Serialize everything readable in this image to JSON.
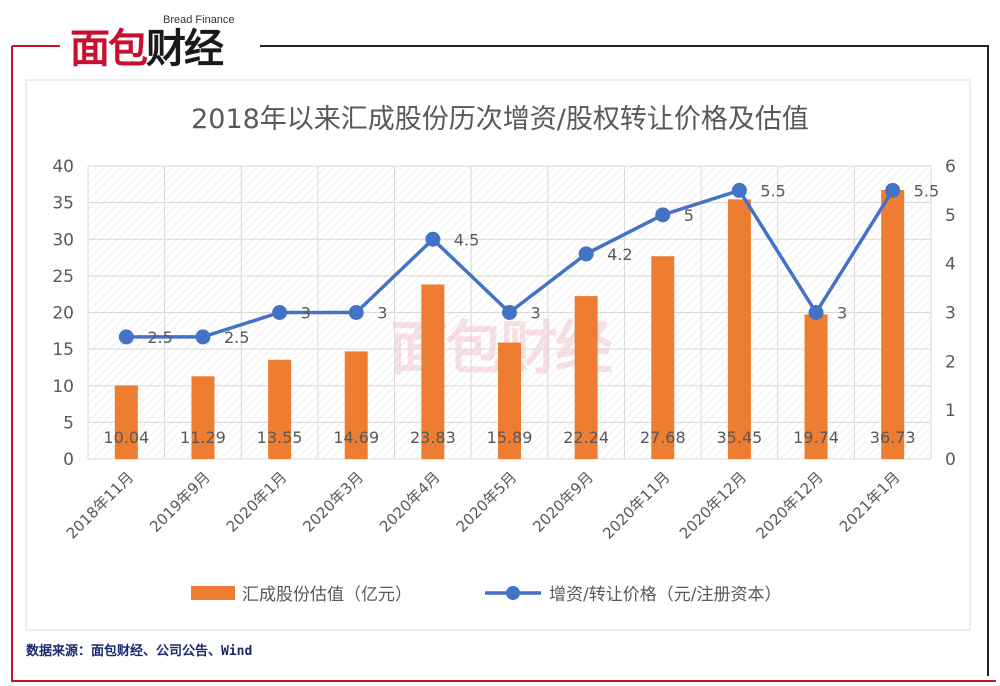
{
  "brand": {
    "logo_part1": "面包",
    "logo_part2": "财经",
    "logo_en": "Bread Finance"
  },
  "source_note": "数据来源：面包财经、公司公告、Wind",
  "watermark": "面包财经",
  "colors": {
    "bar": "#ED7D31",
    "line": "#4472C4",
    "frame": "#c8102e",
    "grid": "#d9d9d9",
    "axis_text": "#595959",
    "title": "#595959"
  },
  "chart_data": {
    "type": "bar",
    "title": "2018年以来汇成股份历次增资/股权转让价格及估值",
    "categories": [
      "2018年11月",
      "2019年9月",
      "2020年1月",
      "2020年3月",
      "2020年4月",
      "2020年5月",
      "2020年9月",
      "2020年11月",
      "2020年12月",
      "2020年12月",
      "2021年1月"
    ],
    "series": [
      {
        "name": "汇成股份估值（亿元）",
        "type": "bar",
        "axis": "left",
        "values": [
          10.04,
          11.29,
          13.55,
          14.69,
          23.83,
          15.89,
          22.24,
          27.68,
          35.45,
          19.74,
          36.73
        ],
        "labels": [
          "10.04",
          "11.29",
          "13.55",
          "14.69",
          "23.83",
          "15.89",
          "22.24",
          "27.68",
          "35.45",
          "19.74",
          "36.73"
        ]
      },
      {
        "name": "增资/转让价格（元/注册资本）",
        "type": "line",
        "axis": "right",
        "values": [
          2.5,
          2.5,
          3,
          3,
          4.5,
          3,
          4.2,
          5,
          5.5,
          3,
          5.5
        ],
        "labels": [
          "2.5",
          "2.5",
          "3",
          "3",
          "4.5",
          "3",
          "4.2",
          "5",
          "5.5",
          "3",
          "5.5"
        ]
      }
    ],
    "y_left": {
      "min": 0,
      "max": 40,
      "ticks": [
        "0",
        "5",
        "10",
        "15",
        "20",
        "25",
        "30",
        "35",
        "40"
      ]
    },
    "y_right": {
      "min": 0,
      "max": 6,
      "ticks": [
        "0",
        "1",
        "2",
        "3",
        "4",
        "5",
        "6"
      ]
    },
    "grid": true,
    "legend_position": "bottom"
  }
}
